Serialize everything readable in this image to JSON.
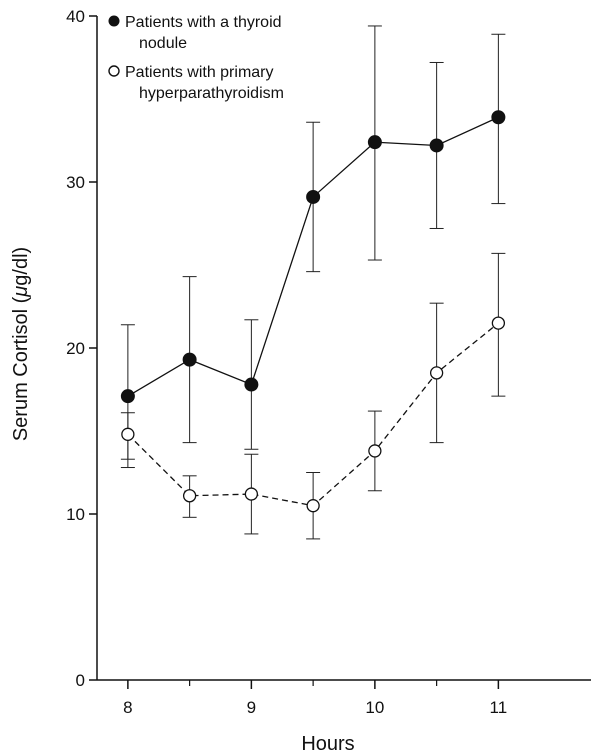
{
  "chart_data": {
    "type": "line",
    "title": "",
    "xlabel": "Hours",
    "ylabel_prefix": "Serum Cortisol (",
    "ylabel_mu": "μ",
    "ylabel_suffix": "g/dl)",
    "xlim": [
      7.75,
      11.75
    ],
    "ylim": [
      0,
      40
    ],
    "x_ticks": [
      8,
      9,
      10,
      11
    ],
    "x_minor_ticks": [
      8.5,
      9.5,
      10.5
    ],
    "y_ticks": [
      0,
      10,
      20,
      30,
      40
    ],
    "grid": false,
    "legend_position": "top-left",
    "x": [
      8,
      8.5,
      9,
      9.5,
      10,
      10.5,
      11
    ],
    "series": [
      {
        "name_line1": "Patients with a thyroid",
        "name_line2": "nodule",
        "marker": "filled-circle",
        "line_style": "solid",
        "values": [
          17.1,
          19.3,
          17.8,
          29.1,
          32.4,
          32.2,
          33.9
        ],
        "err_upper": [
          21.4,
          24.3,
          21.7,
          33.6,
          39.4,
          37.2,
          38.9
        ],
        "err_lower": [
          12.8,
          14.3,
          13.9,
          24.6,
          25.3,
          27.2,
          28.7
        ]
      },
      {
        "name_line1": "Patients with primary",
        "name_line2": "hyperparathyroidism",
        "marker": "open-circle",
        "line_style": "dashed",
        "values": [
          14.8,
          11.1,
          11.2,
          10.5,
          13.8,
          18.5,
          21.5
        ],
        "err_upper": [
          16.1,
          12.3,
          13.6,
          12.5,
          16.2,
          22.7,
          25.7
        ],
        "err_lower": [
          13.3,
          9.8,
          8.8,
          8.5,
          11.4,
          14.3,
          17.1
        ]
      }
    ]
  }
}
